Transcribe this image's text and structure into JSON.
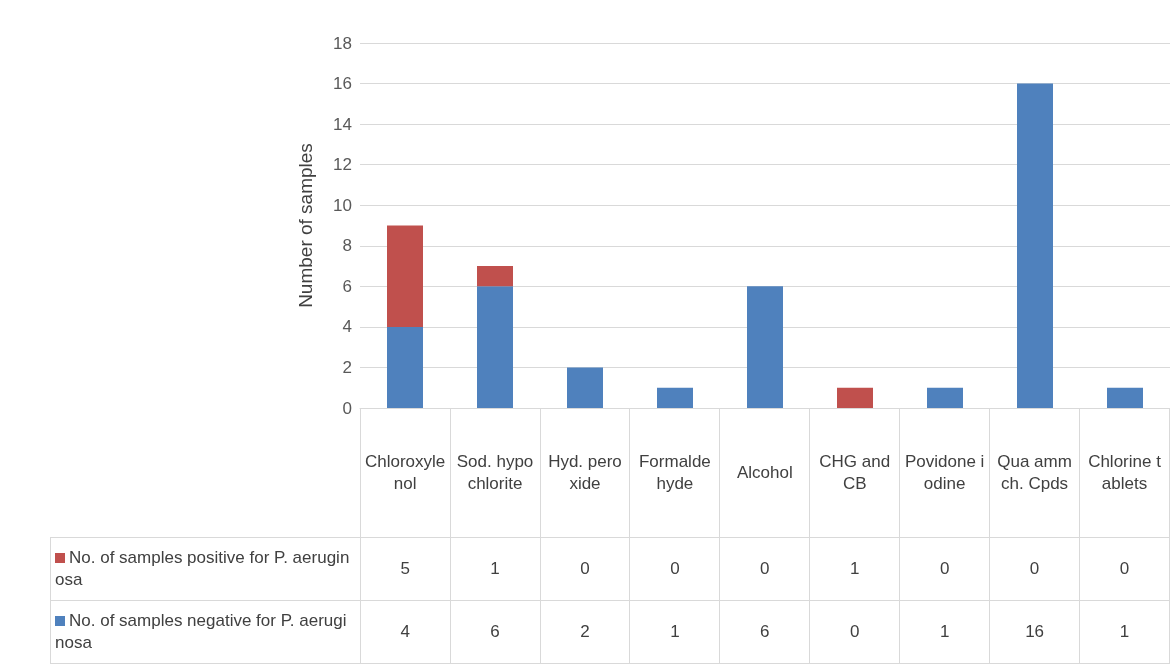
{
  "chart_data": {
    "type": "bar",
    "stacked": true,
    "ylabel": "Number of samples",
    "categories": [
      "Chloroxylenol",
      "Sod. hypochlorite",
      "Hyd. peroxide",
      "Formaldehyde",
      "Alcohol",
      "CHG and CB",
      "Povidone iodine",
      "Qua amm ch. Cpds",
      "Chlorine tablets"
    ],
    "series": [
      {
        "name": "No. of samples negative for P. aeruginosa",
        "color": "#4f81bd",
        "values": [
          4,
          6,
          2,
          1,
          6,
          0,
          1,
          16,
          1
        ]
      },
      {
        "name": "No. of samples positive for P. aeruginosa",
        "color": "#c0504d",
        "values": [
          5,
          1,
          0,
          0,
          0,
          1,
          0,
          0,
          0
        ]
      }
    ],
    "ylim": [
      0,
      18
    ],
    "yticks": [
      0,
      2,
      4,
      6,
      8,
      10,
      12,
      14,
      16,
      18
    ],
    "grid": "y",
    "data_labels": true,
    "legend": "bottom left"
  }
}
